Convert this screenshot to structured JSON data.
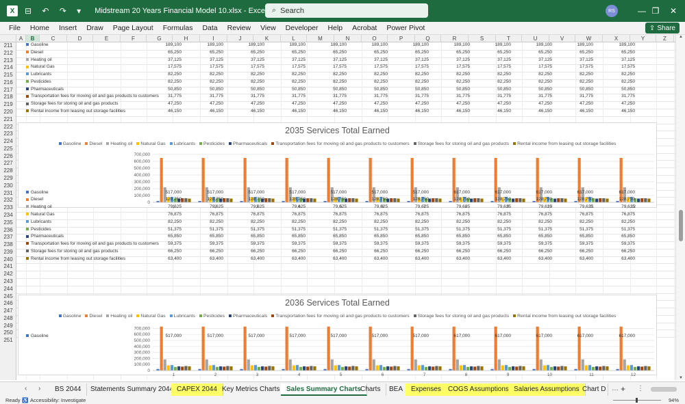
{
  "window": {
    "app_logo": "X",
    "quick_access": "⊟ ↶ ↷ ▾",
    "title": "Midstream 20 Years Financial Model 10.xlsx  -  Excel",
    "search_placeholder": "Search",
    "user_initials": "RS",
    "minimize": "—",
    "restore": "❐",
    "close": "✕"
  },
  "menu": {
    "items": [
      "File",
      "Home",
      "Insert",
      "Draw",
      "Page Layout",
      "Formulas",
      "Data",
      "Review",
      "View",
      "Developer",
      "Help",
      "Acrobat",
      "Power Pivot"
    ],
    "share_label": "Share"
  },
  "grid": {
    "columns": [
      "A",
      "B",
      "C",
      "D",
      "E",
      "F",
      "G",
      "H",
      "I",
      "J",
      "K",
      "L",
      "M",
      "N",
      "O",
      "P",
      "Q",
      "R",
      "S",
      "T",
      "U",
      "V",
      "W",
      "X",
      "Y",
      "Z"
    ],
    "selected_column": "B",
    "rows": [
      "211",
      "212",
      "213",
      "214",
      "215",
      "216",
      "217",
      "218",
      "219",
      "220",
      "221",
      "222",
      "223",
      "224",
      "225",
      "226",
      "227",
      "228",
      "229",
      "230",
      "231",
      "232",
      "233",
      "234",
      "235",
      "236",
      "237",
      "238",
      "239",
      "240",
      "241",
      "242",
      "243",
      "244",
      "245",
      "246",
      "247",
      "248",
      "249",
      "250",
      "251"
    ]
  },
  "series_colors": [
    "#4472c4",
    "#ed7d31",
    "#a5a5a5",
    "#ffc000",
    "#5b9bd5",
    "#70ad47",
    "#264478",
    "#9e480e",
    "#636363",
    "#997300"
  ],
  "table_top": {
    "rows": [
      {
        "label": "Gasoline",
        "values": [
          "189,100",
          "189,100",
          "189,100",
          "189,100",
          "189,100",
          "189,100",
          "189,100",
          "189,100",
          "189,100",
          "189,100",
          "189,100",
          "189,100"
        ]
      },
      {
        "label": "Diesel",
        "values": [
          "65,250",
          "65,250",
          "65,250",
          "65,250",
          "65,250",
          "65,250",
          "65,250",
          "65,250",
          "65,250",
          "65,250",
          "65,250",
          "65,250"
        ]
      },
      {
        "label": "Heating oil",
        "values": [
          "37,125",
          "37,125",
          "37,125",
          "37,125",
          "37,125",
          "37,125",
          "37,125",
          "37,125",
          "37,125",
          "37,125",
          "37,125",
          "37,125"
        ]
      },
      {
        "label": "Natural Gas",
        "values": [
          "17,575",
          "17,575",
          "17,575",
          "17,575",
          "17,575",
          "17,575",
          "17,575",
          "17,575",
          "17,575",
          "17,575",
          "17,575",
          "17,575"
        ]
      },
      {
        "label": "Lubricants",
        "values": [
          "82,250",
          "82,250",
          "82,250",
          "82,250",
          "82,250",
          "82,250",
          "82,250",
          "82,250",
          "82,250",
          "82,250",
          "82,250",
          "82,250"
        ]
      },
      {
        "label": "Pesticides",
        "values": [
          "82,250",
          "82,250",
          "82,250",
          "82,250",
          "82,250",
          "82,250",
          "82,250",
          "82,250",
          "82,250",
          "82,250",
          "82,250",
          "82,250"
        ]
      },
      {
        "label": "Pharmaceuticals",
        "values": [
          "50,850",
          "50,850",
          "50,850",
          "50,850",
          "50,850",
          "50,850",
          "50,850",
          "50,850",
          "50,850",
          "50,850",
          "50,850",
          "50,850"
        ]
      },
      {
        "label": "Transportation fees for moving oil and gas products to customers",
        "values": [
          "31,775",
          "31,775",
          "31,775",
          "31,775",
          "31,775",
          "31,775",
          "31,775",
          "31,775",
          "31,775",
          "31,775",
          "31,775",
          "31,775"
        ]
      },
      {
        "label": "Storage fees for storing oil and gas products",
        "values": [
          "47,250",
          "47,250",
          "47,250",
          "47,250",
          "47,250",
          "47,250",
          "47,250",
          "47,250",
          "47,250",
          "47,250",
          "47,250",
          "47,250"
        ]
      },
      {
        "label": "Rental income from leasing out storage facilities",
        "values": [
          "46,150",
          "46,150",
          "46,150",
          "46,150",
          "46,150",
          "46,150",
          "46,150",
          "46,150",
          "46,150",
          "46,150",
          "46,150",
          "46,150"
        ]
      }
    ]
  },
  "chart_data": [
    {
      "type": "bar",
      "title": "2035 Services Total Earned",
      "categories": [
        "1",
        "2",
        "3",
        "4",
        "5",
        "6",
        "7",
        "8",
        "9",
        "10",
        "11",
        "12"
      ],
      "ylim": [
        0,
        700000
      ],
      "yticks": [
        "700,000",
        "600,000",
        "500,000",
        "400,000",
        "300,000",
        "200,000",
        "100,000",
        "0"
      ],
      "legend_position": "top",
      "series": [
        {
          "name": "Gasoline",
          "values": [
            20000,
            20000,
            20000,
            20000,
            20000,
            20000,
            20000,
            20000,
            20000,
            20000,
            20000,
            20000
          ]
        },
        {
          "name": "Diesel",
          "values": [
            650000,
            650000,
            650000,
            650000,
            650000,
            650000,
            650000,
            650000,
            650000,
            650000,
            650000,
            650000
          ]
        },
        {
          "name": "Heating oil",
          "values": [
            220000,
            220000,
            220000,
            220000,
            220000,
            220000,
            220000,
            220000,
            220000,
            220000,
            220000,
            220000
          ]
        },
        {
          "name": "Natural Gas",
          "values": [
            75000,
            75000,
            75000,
            75000,
            75000,
            75000,
            75000,
            75000,
            75000,
            75000,
            75000,
            75000
          ]
        },
        {
          "name": "Lubricants",
          "values": [
            80000,
            80000,
            80000,
            80000,
            80000,
            80000,
            80000,
            80000,
            80000,
            80000,
            80000,
            80000
          ]
        },
        {
          "name": "Pesticides",
          "values": [
            60000,
            60000,
            60000,
            60000,
            60000,
            60000,
            60000,
            60000,
            60000,
            60000,
            60000,
            60000
          ]
        },
        {
          "name": "Pharmaceuticals",
          "values": [
            55000,
            55000,
            55000,
            55000,
            55000,
            55000,
            55000,
            55000,
            55000,
            55000,
            55000,
            55000
          ]
        },
        {
          "name": "Transportation fees for moving oil and gas products to customers",
          "values": [
            60000,
            60000,
            60000,
            60000,
            60000,
            60000,
            60000,
            60000,
            60000,
            60000,
            60000,
            60000
          ]
        },
        {
          "name": "Storage fees for storing oil and gas products",
          "values": [
            60000,
            60000,
            60000,
            60000,
            60000,
            60000,
            60000,
            60000,
            60000,
            60000,
            60000,
            60000
          ]
        },
        {
          "name": "Rental income from leasing out storage facilities",
          "values": [
            55000,
            55000,
            55000,
            55000,
            55000,
            55000,
            55000,
            55000,
            55000,
            55000,
            55000,
            55000
          ]
        }
      ]
    },
    {
      "type": "bar",
      "title": "2036 Services Total Earned",
      "categories": [
        "1",
        "2",
        "3",
        "4",
        "5",
        "6",
        "7",
        "8",
        "9",
        "10",
        "11",
        "12"
      ],
      "ylim": [
        0,
        750000
      ],
      "yticks": [
        "700,000",
        "600,000",
        "500,000",
        "400,000",
        "300,000",
        "200,000",
        "100,000",
        "0"
      ],
      "legend_position": "top",
      "series": [
        {
          "name": "Gasoline",
          "values": [
            25000,
            25000,
            25000,
            25000,
            25000,
            25000,
            25000,
            25000,
            25000,
            25000,
            25000,
            25000
          ]
        },
        {
          "name": "Diesel",
          "values": [
            730000,
            730000,
            730000,
            730000,
            730000,
            730000,
            730000,
            730000,
            730000,
            730000,
            730000,
            730000
          ]
        },
        {
          "name": "Heating oil",
          "values": [
            185000,
            185000,
            185000,
            185000,
            185000,
            185000,
            185000,
            185000,
            185000,
            185000,
            185000,
            185000
          ]
        },
        {
          "name": "Natural Gas",
          "values": [
            85000,
            85000,
            85000,
            85000,
            85000,
            85000,
            85000,
            85000,
            85000,
            85000,
            85000,
            85000
          ]
        },
        {
          "name": "Lubricants",
          "values": [
            90000,
            90000,
            90000,
            90000,
            90000,
            90000,
            90000,
            90000,
            90000,
            90000,
            90000,
            90000
          ]
        },
        {
          "name": "Pesticides",
          "values": [
            60000,
            60000,
            60000,
            60000,
            60000,
            60000,
            60000,
            60000,
            60000,
            60000,
            60000,
            60000
          ]
        },
        {
          "name": "Pharmaceuticals",
          "values": [
            70000,
            70000,
            70000,
            70000,
            70000,
            70000,
            70000,
            70000,
            70000,
            70000,
            70000,
            70000
          ]
        },
        {
          "name": "Transportation fees for moving oil and gas products to customers",
          "values": [
            65000,
            65000,
            65000,
            65000,
            65000,
            65000,
            65000,
            65000,
            65000,
            65000,
            65000,
            65000
          ]
        },
        {
          "name": "Storage fees for storing oil and gas products",
          "values": [
            75000,
            75000,
            75000,
            75000,
            75000,
            75000,
            75000,
            75000,
            75000,
            75000,
            75000,
            75000
          ]
        },
        {
          "name": "Rental income from leasing out storage facilities",
          "values": [
            70000,
            70000,
            70000,
            70000,
            70000,
            70000,
            70000,
            70000,
            70000,
            70000,
            70000,
            70000
          ]
        }
      ]
    }
  ],
  "table_mid": {
    "rows": [
      {
        "label": "Gasoline",
        "values": [
          "517,000",
          "517,000",
          "517,000",
          "517,000",
          "517,000",
          "517,000",
          "517,000",
          "617,000",
          "617,000",
          "617,000",
          "617,000",
          "617,000"
        ]
      },
      {
        "label": "Diesel",
        "values": [
          "128,750",
          "128,750",
          "128,750",
          "128,750",
          "128,750",
          "128,750",
          "128,750",
          "128,750",
          "128,750",
          "128,750",
          "128,750",
          "128,750"
        ]
      },
      {
        "label": "Heating oil",
        "values": [
          "79,625",
          "79,625",
          "79,625",
          "79,625",
          "79,625",
          "79,625",
          "79,625",
          "79,625",
          "79,625",
          "79,625",
          "79,625",
          "79,625"
        ]
      },
      {
        "label": "Natural Gas",
        "values": [
          "76,875",
          "76,875",
          "76,875",
          "76,875",
          "76,875",
          "76,875",
          "76,875",
          "76,875",
          "76,875",
          "76,875",
          "76,875",
          "76,875"
        ]
      },
      {
        "label": "Lubricants",
        "values": [
          "82,250",
          "82,250",
          "82,250",
          "82,250",
          "82,250",
          "82,250",
          "82,250",
          "82,250",
          "82,250",
          "82,250",
          "82,250",
          "82,250"
        ]
      },
      {
        "label": "Pesticides",
        "values": [
          "51,375",
          "51,375",
          "51,375",
          "51,375",
          "51,375",
          "51,375",
          "51,375",
          "51,375",
          "51,375",
          "51,375",
          "51,375",
          "51,375"
        ]
      },
      {
        "label": "Pharmaceuticals",
        "values": [
          "65,850",
          "65,850",
          "65,850",
          "65,850",
          "65,850",
          "65,850",
          "65,850",
          "65,850",
          "65,850",
          "65,850",
          "65,850",
          "65,850"
        ]
      },
      {
        "label": "Transportation fees for moving oil and gas products to customers",
        "values": [
          "59,375",
          "59,375",
          "59,375",
          "59,375",
          "59,375",
          "59,375",
          "59,375",
          "59,375",
          "59,375",
          "59,375",
          "59,375",
          "59,375"
        ]
      },
      {
        "label": "Storage fees for storing oil and gas products",
        "values": [
          "66,250",
          "66,250",
          "66,250",
          "66,250",
          "66,250",
          "66,250",
          "66,250",
          "66,250",
          "66,250",
          "66,250",
          "66,250",
          "66,250"
        ]
      },
      {
        "label": "Rental income from leasing out storage facilities",
        "values": [
          "63,400",
          "63,400",
          "63,400",
          "63,400",
          "63,400",
          "63,400",
          "63,400",
          "63,400",
          "63,400",
          "63,400",
          "63,400",
          "63,400"
        ]
      }
    ]
  },
  "table_bottom": {
    "rows": [
      {
        "label": "Gasoline",
        "values": [
          "517,000",
          "517,000",
          "517,000",
          "517,000",
          "517,000",
          "517,000",
          "517,000",
          "617,000",
          "617,000",
          "617,000",
          "617,000",
          "617,000"
        ]
      }
    ]
  },
  "tabs": {
    "nav_prev": "‹",
    "nav_next": "›",
    "items": [
      {
        "label": "BS 2044",
        "style": "normal"
      },
      {
        "label": "Statements Summary 2044",
        "style": "normal"
      },
      {
        "label": "CAPEX 2044",
        "style": "yellow"
      },
      {
        "label": "Key Metrics Charts",
        "style": "normal"
      },
      {
        "label": "Sales Summary Charts",
        "style": "active"
      },
      {
        "label": "Charts",
        "style": "normal"
      },
      {
        "label": "BEA",
        "style": "normal"
      },
      {
        "label": "Expenses",
        "style": "yellow"
      },
      {
        "label": "COGS Assumptions",
        "style": "yellow"
      },
      {
        "label": "Salaries Assumptions",
        "style": "yellow"
      },
      {
        "label": "Chart D",
        "style": "normal"
      }
    ],
    "more": "…",
    "add": "+",
    "menu": "⋮"
  },
  "status": {
    "ready": "Ready",
    "accessibility": "Accessibility: Investigate",
    "zoom": "94%"
  }
}
